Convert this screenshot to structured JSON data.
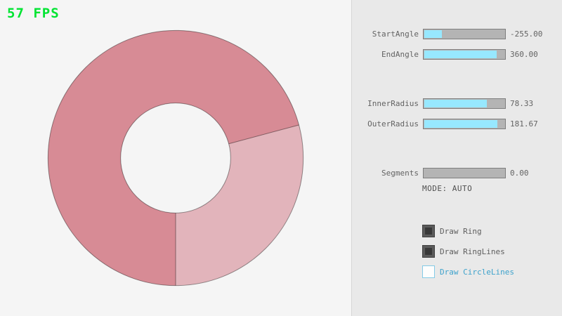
{
  "fps_label": "57 FPS",
  "panel": {
    "sliders": [
      {
        "label": "StartAngle",
        "value": "-255.00",
        "fill_pct": 21.7
      },
      {
        "label": "EndAngle",
        "value": "360.00",
        "fill_pct": 90.0
      },
      {
        "label": "InnerRadius",
        "value": "78.33",
        "fill_pct": 78.3
      },
      {
        "label": "OuterRadius",
        "value": "181.67",
        "fill_pct": 90.8
      },
      {
        "label": "Segments",
        "value": "0.00",
        "fill_pct": 0
      }
    ],
    "mode_text": "MODE: AUTO",
    "checkboxes": [
      {
        "label": "Draw Ring",
        "checked": true
      },
      {
        "label": "Draw RingLines",
        "checked": true
      },
      {
        "label": "Draw CircleLines",
        "checked": false
      }
    ]
  },
  "ring": {
    "start_angle": -255.0,
    "end_angle": 360.0,
    "inner_radius": 78.33,
    "outer_radius": 181.67,
    "segments": 0
  },
  "colors": {
    "background": "#f5f5f5",
    "panel_bg": "#e9e9e9",
    "fps_green": "#00e432",
    "ring_once": "#e2b4bb",
    "ring_overlap": "#d78b95",
    "ring_outline": "rgba(0,0,0,0.40)",
    "slider_fill": "#97e8ff",
    "slider_track": "#b4b4b4",
    "slider_border": "#7e7e7e",
    "label_gray": "#636363",
    "mode_text_color": "#505050",
    "checkbox_dark": "#5b5b5b",
    "checkbox_blue": "#3da2cc"
  }
}
